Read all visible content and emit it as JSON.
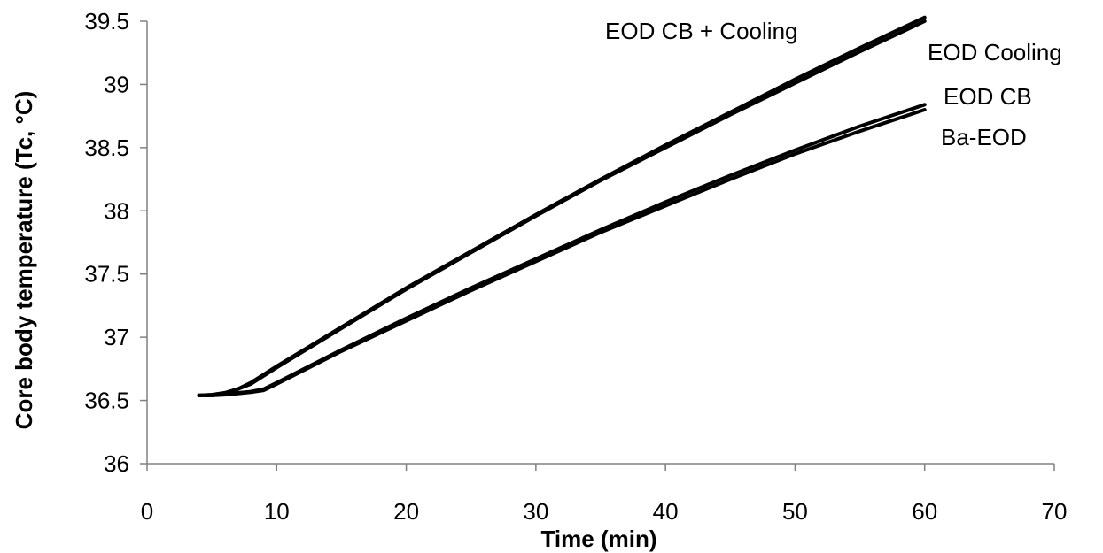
{
  "chart_data": {
    "type": "line",
    "title": "",
    "xlabel": "Time (min)",
    "ylabel": "Core body temperature (Tc, °C)",
    "xlim": [
      0,
      70
    ],
    "ylim": [
      36,
      39.5
    ],
    "xticks": [
      0,
      10,
      20,
      30,
      40,
      50,
      60,
      70
    ],
    "yticks": [
      36,
      36.5,
      37,
      37.5,
      38,
      38.5,
      39,
      39.5
    ],
    "ytick_labels": [
      "36",
      "36.5",
      "37",
      "37.5",
      "38",
      "38.5",
      "39",
      "39.5"
    ],
    "grid": false,
    "legend": "none",
    "series": [
      {
        "name": "EOD CB + Cooling",
        "x": [
          4,
          5,
          6,
          7,
          8,
          10,
          15,
          20,
          25,
          30,
          35,
          40,
          45,
          50,
          55,
          60
        ],
        "y": [
          36.54,
          36.545,
          36.56,
          36.59,
          36.64,
          36.77,
          37.08,
          37.39,
          37.68,
          37.97,
          38.25,
          38.52,
          38.78,
          39.04,
          39.29,
          39.53
        ]
      },
      {
        "name": "EOD Cooling",
        "x": [
          4,
          5,
          6,
          7,
          8,
          10,
          15,
          20,
          25,
          30,
          35,
          40,
          45,
          50,
          55,
          60
        ],
        "y": [
          36.54,
          36.545,
          36.56,
          36.59,
          36.63,
          36.76,
          37.07,
          37.38,
          37.67,
          37.96,
          38.24,
          38.5,
          38.76,
          39.01,
          39.26,
          39.5
        ]
      },
      {
        "name": "EOD CB",
        "x": [
          4,
          5,
          6,
          7,
          8,
          9,
          10,
          15,
          20,
          25,
          30,
          35,
          40,
          45,
          50,
          55,
          60
        ],
        "y": [
          36.54,
          36.54,
          36.55,
          36.56,
          36.57,
          36.59,
          36.64,
          36.9,
          37.15,
          37.39,
          37.62,
          37.85,
          38.07,
          38.28,
          38.48,
          38.67,
          38.84
        ]
      },
      {
        "name": "Ba-EOD",
        "x": [
          4,
          5,
          6,
          7,
          8,
          9,
          10,
          15,
          20,
          25,
          30,
          35,
          40,
          45,
          50,
          55,
          60
        ],
        "y": [
          36.54,
          36.54,
          36.545,
          36.555,
          36.565,
          36.58,
          36.63,
          36.89,
          37.13,
          37.37,
          37.6,
          37.83,
          38.04,
          38.25,
          38.45,
          38.63,
          38.8
        ]
      }
    ]
  }
}
